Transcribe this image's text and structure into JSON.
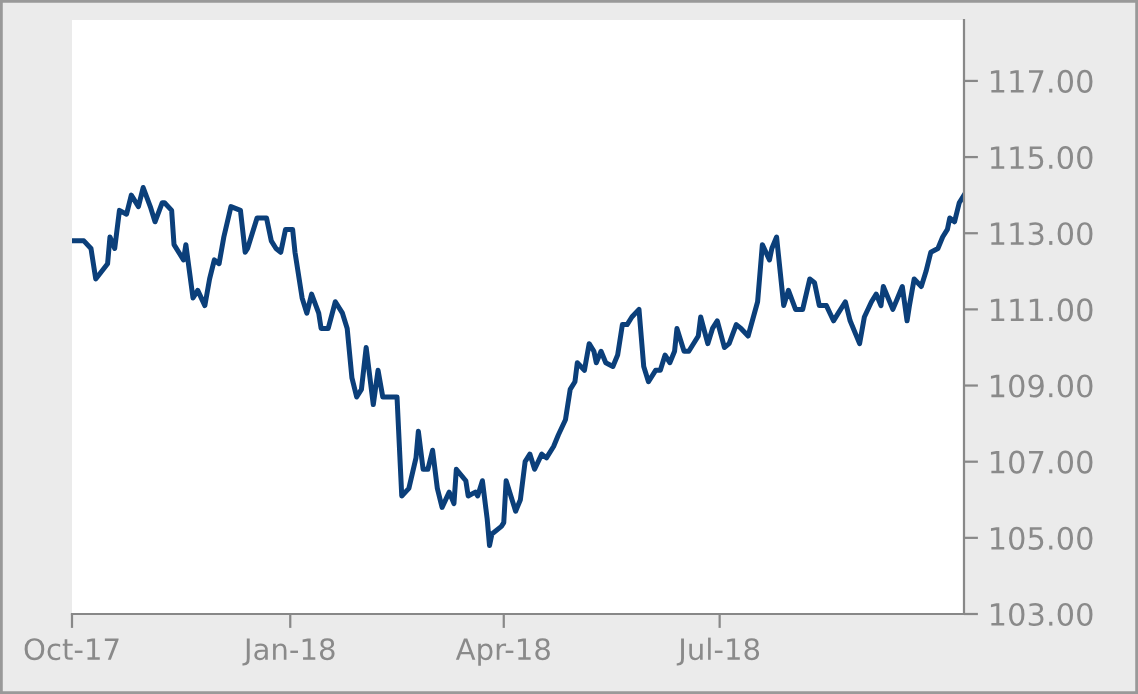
{
  "chart_data": {
    "type": "line",
    "x": [
      "2017-10-01",
      "2017-10-06",
      "2017-10-09",
      "2017-10-11",
      "2017-10-16",
      "2017-10-17",
      "2017-10-19",
      "2017-10-21",
      "2017-10-24",
      "2017-10-26",
      "2017-10-29",
      "2017-10-31",
      "2017-11-03",
      "2017-11-05",
      "2017-11-08",
      "2017-11-09",
      "2017-11-12",
      "2017-11-13",
      "2017-11-17",
      "2017-11-18",
      "2017-11-21",
      "2017-11-23",
      "2017-11-26",
      "2017-11-28",
      "2017-11-30",
      "2017-12-02",
      "2017-12-04",
      "2017-12-07",
      "2017-12-11",
      "2017-12-13",
      "2017-12-14",
      "2017-12-18",
      "2017-12-22",
      "2017-12-24",
      "2017-12-26",
      "2017-12-28",
      "2017-12-30",
      "2018-01-02",
      "2018-01-03",
      "2018-01-06",
      "2018-01-08",
      "2018-01-10",
      "2018-01-13",
      "2018-01-14",
      "2018-01-17",
      "2018-01-20",
      "2018-01-23",
      "2018-01-25",
      "2018-01-27",
      "2018-01-29",
      "2018-01-31",
      "2018-02-02",
      "2018-02-05",
      "2018-02-07",
      "2018-02-09",
      "2018-02-14",
      "2018-02-15",
      "2018-02-17",
      "2018-02-20",
      "2018-02-23",
      "2018-02-24",
      "2018-02-26",
      "2018-02-28",
      "2018-03-02",
      "2018-03-04",
      "2018-03-06",
      "2018-03-09",
      "2018-03-11",
      "2018-03-12",
      "2018-03-16",
      "2018-03-17",
      "2018-03-20",
      "2018-03-21",
      "2018-03-23",
      "2018-03-25",
      "2018-03-26",
      "2018-03-27",
      "2018-03-31",
      "2018-04-01",
      "2018-04-02",
      "2018-04-04",
      "2018-04-06",
      "2018-04-08",
      "2018-04-10",
      "2018-04-12",
      "2018-04-14",
      "2018-04-17",
      "2018-04-19",
      "2018-04-22",
      "2018-04-24",
      "2018-04-27",
      "2018-04-29",
      "2018-05-01",
      "2018-05-02",
      "2018-05-05",
      "2018-05-07",
      "2018-05-09",
      "2018-05-10",
      "2018-05-12",
      "2018-05-14",
      "2018-05-17",
      "2018-05-19",
      "2018-05-21",
      "2018-05-23",
      "2018-05-25",
      "2018-05-28",
      "2018-05-30",
      "2018-06-01",
      "2018-06-04",
      "2018-06-06",
      "2018-06-08",
      "2018-06-10",
      "2018-06-12",
      "2018-06-13",
      "2018-06-16",
      "2018-06-18",
      "2018-06-22",
      "2018-06-23",
      "2018-06-26",
      "2018-06-28",
      "2018-06-30",
      "2018-07-03",
      "2018-07-05",
      "2018-07-08",
      "2018-07-10",
      "2018-07-13",
      "2018-07-17",
      "2018-07-19",
      "2018-07-22",
      "2018-07-23",
      "2018-07-25",
      "2018-07-28",
      "2018-07-30",
      "2018-08-02",
      "2018-08-05",
      "2018-08-08",
      "2018-08-10",
      "2018-08-12",
      "2018-08-15",
      "2018-08-18",
      "2018-08-20",
      "2018-08-23",
      "2018-08-25",
      "2018-08-29",
      "2018-08-31",
      "2018-09-03",
      "2018-09-05",
      "2018-09-07",
      "2018-09-08",
      "2018-09-12",
      "2018-09-14",
      "2018-09-16",
      "2018-09-18",
      "2018-09-19",
      "2018-09-21",
      "2018-09-24",
      "2018-09-26",
      "2018-09-28",
      "2018-10-01",
      "2018-10-03",
      "2018-10-05",
      "2018-10-06",
      "2018-10-08",
      "2018-10-10",
      "2018-10-12"
    ],
    "series": [
      {
        "color": "#0b3f7a",
        "values": [
          112.8,
          112.8,
          112.6,
          111.8,
          112.2,
          112.9,
          112.6,
          113.6,
          113.5,
          114.0,
          113.7,
          114.2,
          113.7,
          113.3,
          113.8,
          113.8,
          113.6,
          112.7,
          112.3,
          112.7,
          111.3,
          111.5,
          111.1,
          111.8,
          112.3,
          112.2,
          112.9,
          113.7,
          113.6,
          112.5,
          112.6,
          113.4,
          113.4,
          112.8,
          112.6,
          112.5,
          113.1,
          113.1,
          112.5,
          111.3,
          110.9,
          111.4,
          110.9,
          110.5,
          110.5,
          111.2,
          110.9,
          110.5,
          109.2,
          108.7,
          108.9,
          110.0,
          108.5,
          109.4,
          108.7,
          108.7,
          108.7,
          106.1,
          106.3,
          107.1,
          107.8,
          106.8,
          106.8,
          107.3,
          106.3,
          105.8,
          106.2,
          105.9,
          106.8,
          106.5,
          106.1,
          106.2,
          106.1,
          106.5,
          105.5,
          104.8,
          105.1,
          105.3,
          105.4,
          106.5,
          106.1,
          105.7,
          106.0,
          107.0,
          107.2,
          106.8,
          107.2,
          107.1,
          107.4,
          107.7,
          108.1,
          108.9,
          109.1,
          109.6,
          109.4,
          110.1,
          109.9,
          109.6,
          109.9,
          109.6,
          109.5,
          109.8,
          110.6,
          110.6,
          110.8,
          111.0,
          109.5,
          109.1,
          109.4,
          109.4,
          109.8,
          109.6,
          109.9,
          110.5,
          109.9,
          109.9,
          110.3,
          110.8,
          110.1,
          110.5,
          110.7,
          110.0,
          110.1,
          110.6,
          110.5,
          110.3,
          111.2,
          112.7,
          112.3,
          112.6,
          112.9,
          111.1,
          111.5,
          111.0,
          111.0,
          111.8,
          111.7,
          111.1,
          111.1,
          110.7,
          110.9,
          111.2,
          110.7,
          110.1,
          110.8,
          111.2,
          111.4,
          111.1,
          111.6,
          111.0,
          111.3,
          111.6,
          110.7,
          111.1,
          111.8,
          111.6,
          112.0,
          112.5,
          112.6,
          112.9,
          113.1,
          113.4,
          113.3,
          113.8,
          114.0
        ]
      }
    ],
    "xlim": [
      "2017-10-01",
      "2018-10-12"
    ],
    "xticks": [
      {
        "value": "2017-10-01",
        "label": "Oct-17"
      },
      {
        "value": "2018-01-01",
        "label": "Jan-18"
      },
      {
        "value": "2018-04-01",
        "label": "Apr-18"
      },
      {
        "value": "2018-07-01",
        "label": "Jul-18"
      }
    ],
    "ylim": [
      103,
      118.6
    ],
    "yticks": [
      {
        "value": 103,
        "label": "103.00"
      },
      {
        "value": 105,
        "label": "105.00"
      },
      {
        "value": 107,
        "label": "107.00"
      },
      {
        "value": 109,
        "label": "109.00"
      },
      {
        "value": 111,
        "label": "111.00"
      },
      {
        "value": 113,
        "label": "113.00"
      },
      {
        "value": 115,
        "label": "115.00"
      },
      {
        "value": 117,
        "label": "117.00"
      }
    ],
    "grid": false,
    "legend": false,
    "marker": "none",
    "line_style": "solid"
  }
}
